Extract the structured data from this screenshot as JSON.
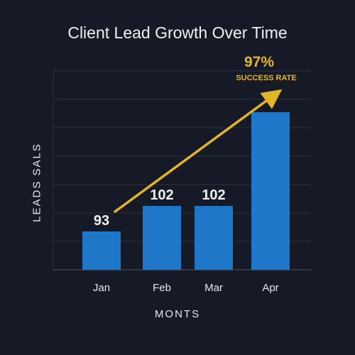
{
  "chart_data": {
    "type": "bar",
    "title": "Client Lead Growth Over Time",
    "xlabel": "MONTS",
    "ylabel": "LEADS SALS",
    "categories": [
      "Jan",
      "Feb",
      "Mar",
      "Apr"
    ],
    "values": [
      93,
      102,
      102,
      null
    ],
    "data_labels": [
      "93",
      "102",
      "102",
      ""
    ],
    "annotation": {
      "value": "97%",
      "label": "SUCCESS RATE"
    },
    "grid": true,
    "colors": {
      "bar": "#1f77c9",
      "arrow": "#e3b52a",
      "background": "#151a26",
      "grid": "#2a3040"
    }
  }
}
